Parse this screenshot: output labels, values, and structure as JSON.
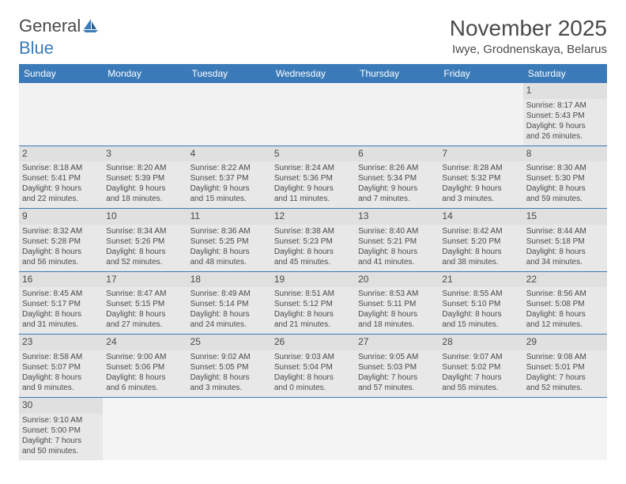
{
  "logo": {
    "text1": "General",
    "text2": "Blue"
  },
  "title": "November 2025",
  "subtitle": "Iwye, Grodnenskaya, Belarus",
  "colors": {
    "header_bg": "#3a7ab8",
    "header_text": "#ffffff",
    "cell_bg": "#e8e8e8",
    "border": "#3a7ab8",
    "text": "#4a4a4a"
  },
  "weekdays": [
    "Sunday",
    "Monday",
    "Tuesday",
    "Wednesday",
    "Thursday",
    "Friday",
    "Saturday"
  ],
  "weeks": [
    [
      null,
      null,
      null,
      null,
      null,
      null,
      {
        "n": "1",
        "sr": "Sunrise: 8:17 AM",
        "ss": "Sunset: 5:43 PM",
        "d1": "Daylight: 9 hours",
        "d2": "and 26 minutes."
      }
    ],
    [
      {
        "n": "2",
        "sr": "Sunrise: 8:18 AM",
        "ss": "Sunset: 5:41 PM",
        "d1": "Daylight: 9 hours",
        "d2": "and 22 minutes."
      },
      {
        "n": "3",
        "sr": "Sunrise: 8:20 AM",
        "ss": "Sunset: 5:39 PM",
        "d1": "Daylight: 9 hours",
        "d2": "and 18 minutes."
      },
      {
        "n": "4",
        "sr": "Sunrise: 8:22 AM",
        "ss": "Sunset: 5:37 PM",
        "d1": "Daylight: 9 hours",
        "d2": "and 15 minutes."
      },
      {
        "n": "5",
        "sr": "Sunrise: 8:24 AM",
        "ss": "Sunset: 5:36 PM",
        "d1": "Daylight: 9 hours",
        "d2": "and 11 minutes."
      },
      {
        "n": "6",
        "sr": "Sunrise: 8:26 AM",
        "ss": "Sunset: 5:34 PM",
        "d1": "Daylight: 9 hours",
        "d2": "and 7 minutes."
      },
      {
        "n": "7",
        "sr": "Sunrise: 8:28 AM",
        "ss": "Sunset: 5:32 PM",
        "d1": "Daylight: 9 hours",
        "d2": "and 3 minutes."
      },
      {
        "n": "8",
        "sr": "Sunrise: 8:30 AM",
        "ss": "Sunset: 5:30 PM",
        "d1": "Daylight: 8 hours",
        "d2": "and 59 minutes."
      }
    ],
    [
      {
        "n": "9",
        "sr": "Sunrise: 8:32 AM",
        "ss": "Sunset: 5:28 PM",
        "d1": "Daylight: 8 hours",
        "d2": "and 56 minutes."
      },
      {
        "n": "10",
        "sr": "Sunrise: 8:34 AM",
        "ss": "Sunset: 5:26 PM",
        "d1": "Daylight: 8 hours",
        "d2": "and 52 minutes."
      },
      {
        "n": "11",
        "sr": "Sunrise: 8:36 AM",
        "ss": "Sunset: 5:25 PM",
        "d1": "Daylight: 8 hours",
        "d2": "and 48 minutes."
      },
      {
        "n": "12",
        "sr": "Sunrise: 8:38 AM",
        "ss": "Sunset: 5:23 PM",
        "d1": "Daylight: 8 hours",
        "d2": "and 45 minutes."
      },
      {
        "n": "13",
        "sr": "Sunrise: 8:40 AM",
        "ss": "Sunset: 5:21 PM",
        "d1": "Daylight: 8 hours",
        "d2": "and 41 minutes."
      },
      {
        "n": "14",
        "sr": "Sunrise: 8:42 AM",
        "ss": "Sunset: 5:20 PM",
        "d1": "Daylight: 8 hours",
        "d2": "and 38 minutes."
      },
      {
        "n": "15",
        "sr": "Sunrise: 8:44 AM",
        "ss": "Sunset: 5:18 PM",
        "d1": "Daylight: 8 hours",
        "d2": "and 34 minutes."
      }
    ],
    [
      {
        "n": "16",
        "sr": "Sunrise: 8:45 AM",
        "ss": "Sunset: 5:17 PM",
        "d1": "Daylight: 8 hours",
        "d2": "and 31 minutes."
      },
      {
        "n": "17",
        "sr": "Sunrise: 8:47 AM",
        "ss": "Sunset: 5:15 PM",
        "d1": "Daylight: 8 hours",
        "d2": "and 27 minutes."
      },
      {
        "n": "18",
        "sr": "Sunrise: 8:49 AM",
        "ss": "Sunset: 5:14 PM",
        "d1": "Daylight: 8 hours",
        "d2": "and 24 minutes."
      },
      {
        "n": "19",
        "sr": "Sunrise: 8:51 AM",
        "ss": "Sunset: 5:12 PM",
        "d1": "Daylight: 8 hours",
        "d2": "and 21 minutes."
      },
      {
        "n": "20",
        "sr": "Sunrise: 8:53 AM",
        "ss": "Sunset: 5:11 PM",
        "d1": "Daylight: 8 hours",
        "d2": "and 18 minutes."
      },
      {
        "n": "21",
        "sr": "Sunrise: 8:55 AM",
        "ss": "Sunset: 5:10 PM",
        "d1": "Daylight: 8 hours",
        "d2": "and 15 minutes."
      },
      {
        "n": "22",
        "sr": "Sunrise: 8:56 AM",
        "ss": "Sunset: 5:08 PM",
        "d1": "Daylight: 8 hours",
        "d2": "and 12 minutes."
      }
    ],
    [
      {
        "n": "23",
        "sr": "Sunrise: 8:58 AM",
        "ss": "Sunset: 5:07 PM",
        "d1": "Daylight: 8 hours",
        "d2": "and 9 minutes."
      },
      {
        "n": "24",
        "sr": "Sunrise: 9:00 AM",
        "ss": "Sunset: 5:06 PM",
        "d1": "Daylight: 8 hours",
        "d2": "and 6 minutes."
      },
      {
        "n": "25",
        "sr": "Sunrise: 9:02 AM",
        "ss": "Sunset: 5:05 PM",
        "d1": "Daylight: 8 hours",
        "d2": "and 3 minutes."
      },
      {
        "n": "26",
        "sr": "Sunrise: 9:03 AM",
        "ss": "Sunset: 5:04 PM",
        "d1": "Daylight: 8 hours",
        "d2": "and 0 minutes."
      },
      {
        "n": "27",
        "sr": "Sunrise: 9:05 AM",
        "ss": "Sunset: 5:03 PM",
        "d1": "Daylight: 7 hours",
        "d2": "and 57 minutes."
      },
      {
        "n": "28",
        "sr": "Sunrise: 9:07 AM",
        "ss": "Sunset: 5:02 PM",
        "d1": "Daylight: 7 hours",
        "d2": "and 55 minutes."
      },
      {
        "n": "29",
        "sr": "Sunrise: 9:08 AM",
        "ss": "Sunset: 5:01 PM",
        "d1": "Daylight: 7 hours",
        "d2": "and 52 minutes."
      }
    ],
    [
      {
        "n": "30",
        "sr": "Sunrise: 9:10 AM",
        "ss": "Sunset: 5:00 PM",
        "d1": "Daylight: 7 hours",
        "d2": "and 50 minutes."
      },
      null,
      null,
      null,
      null,
      null,
      null
    ]
  ]
}
